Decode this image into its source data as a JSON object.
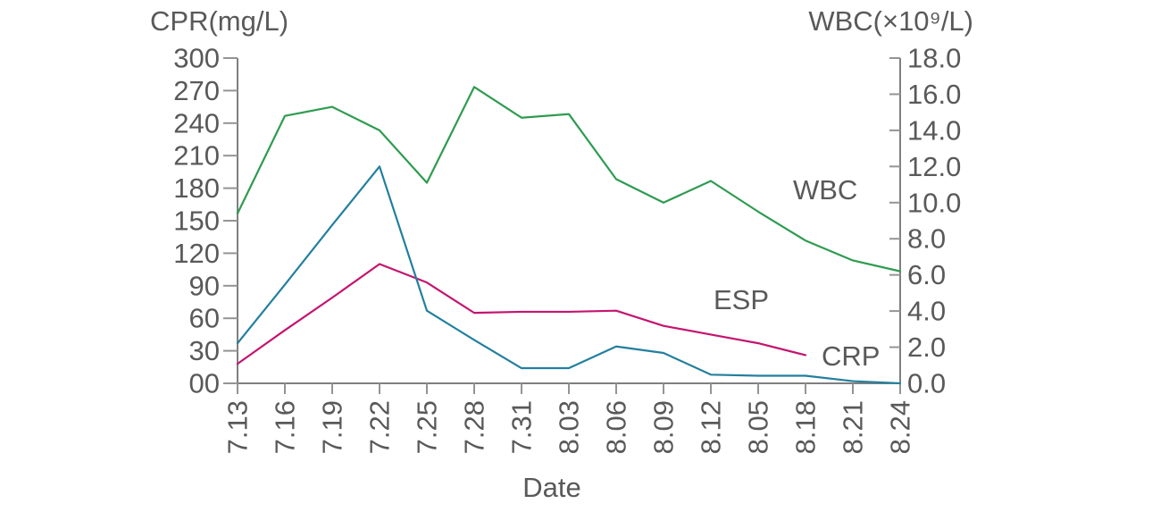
{
  "colors": {
    "background": "#ffffff",
    "axis": "#7f7f7f",
    "tick": "#949494",
    "text": "#595959",
    "wbc_line": "#2e9b50",
    "esp_line": "#c4156f",
    "crp_line": "#237f9e"
  },
  "chart_data": {
    "type": "line",
    "title": "",
    "x_axis": {
      "label": "Date",
      "categories": [
        "7.13",
        "7.16",
        "7.19",
        "7.22",
        "7.25",
        "7.28",
        "7.31",
        "8.03",
        "8.06",
        "8.09",
        "8.12",
        "8.05",
        "8.18",
        "8.21",
        "8.24"
      ]
    },
    "y_axis_left": {
      "label": "CPR(mg/L)",
      "min": 0,
      "max": 300,
      "tick_step": 30,
      "tick_labels_top_to_bottom": [
        "300",
        "270",
        "240",
        "210",
        "180",
        "150",
        "120",
        "90",
        "60",
        "30",
        "00"
      ]
    },
    "y_axis_right": {
      "label": "WBC(×10⁹/L)",
      "min": 0,
      "max": 18,
      "tick_step": 2,
      "tick_labels_top_to_bottom": [
        "18.0",
        "16.0",
        "14.0",
        "12.0",
        "10.0",
        "8.0",
        "6.0",
        "4.0",
        "2.0",
        "0.0"
      ]
    },
    "grid": false,
    "legend": "inline-annotations",
    "series": [
      {
        "name": "WBC",
        "axis": "right",
        "color": "#2e9b50",
        "values": [
          9.4,
          14.8,
          15.3,
          14.0,
          11.1,
          16.4,
          14.7,
          14.9,
          11.3,
          10.0,
          11.2,
          9.5,
          7.9,
          6.8,
          6.2
        ]
      },
      {
        "name": "ESP",
        "axis": "left",
        "color": "#c4156f",
        "values": [
          18,
          49,
          79,
          110,
          93,
          65,
          66,
          66,
          67,
          53,
          45,
          37,
          26,
          null,
          null
        ]
      },
      {
        "name": "CRP",
        "axis": "left",
        "color": "#237f9e",
        "values": [
          37,
          91,
          146,
          200,
          67,
          40,
          14,
          14,
          34,
          28,
          8,
          7,
          7,
          2,
          0
        ]
      }
    ],
    "annotations": [
      {
        "text": "WBC",
        "x": 888,
        "y": 223
      },
      {
        "text": "ESP",
        "x": 799,
        "y": 346
      },
      {
        "text": "CRP",
        "x": 920,
        "y": 409
      }
    ]
  }
}
